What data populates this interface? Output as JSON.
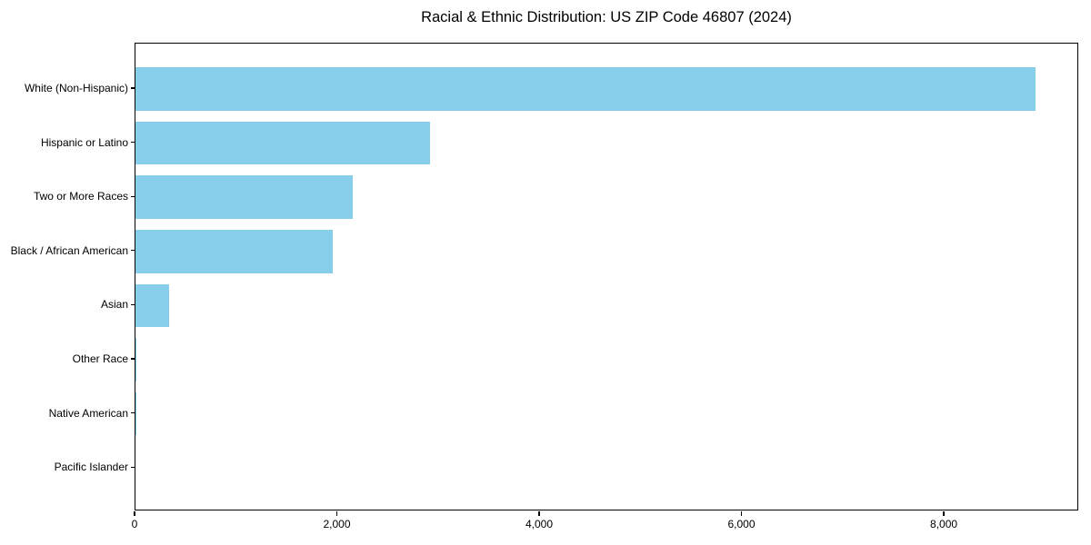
{
  "figure": {
    "background_color": "#ffffff",
    "axis_color": "#000000"
  },
  "chart_data": {
    "type": "bar",
    "orientation": "horizontal",
    "title": "Racial & Ethnic Distribution: US ZIP Code 46807 (2024)",
    "xlabel": "",
    "ylabel": "",
    "categories": [
      "White (Non-Hispanic)",
      "Hispanic or Latino",
      "Two or More Races",
      "Black / African American",
      "Asian",
      "Other Race",
      "Native American",
      "Pacific Islander"
    ],
    "values": [
      8900,
      2910,
      2150,
      1950,
      335,
      10,
      7,
      0
    ],
    "xlim": [
      0,
      9330
    ],
    "x_ticks": [
      0,
      2000,
      4000,
      6000,
      8000
    ],
    "x_tick_labels": [
      "0",
      "2,000",
      "4,000",
      "6,000",
      "8,000"
    ],
    "bar_color": "#87CEEB",
    "grid": false,
    "legend": null
  }
}
